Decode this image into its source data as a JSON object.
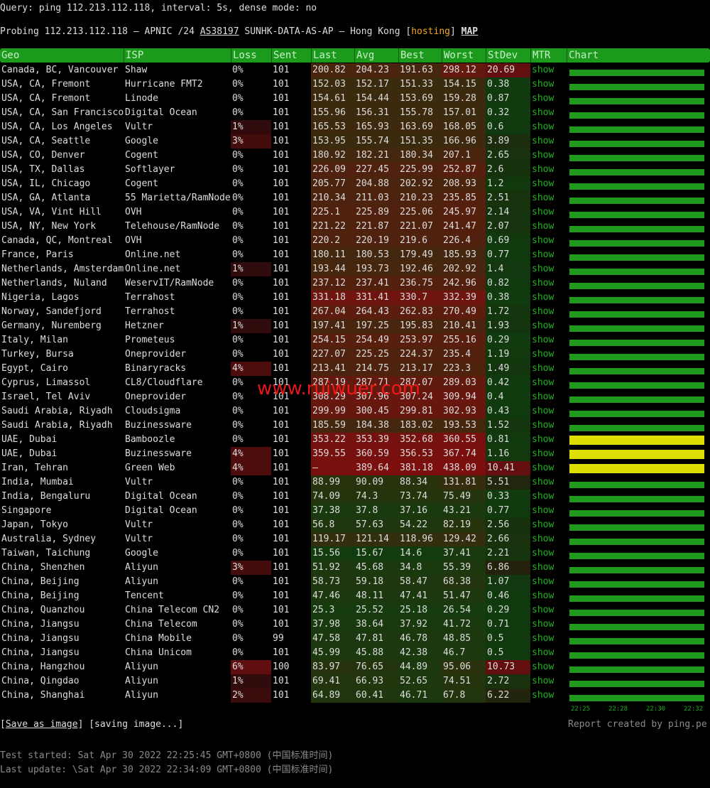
{
  "query": "Query: ping 112.213.112.118, interval: 5s, dense mode: no",
  "probing": {
    "prefix": "Probing 112.213.112.118 – APNIC /24 ",
    "asn": "AS38197",
    "middle": " SUNHK-DATA-AS-AP – Hong Kong [",
    "tag": "hosting",
    "close": "]",
    "map": "MAP"
  },
  "table": {
    "header": [
      "Geo",
      "ISP",
      "Loss",
      "Sent",
      "Last",
      "Avg",
      "Best",
      "Worst",
      "StDev",
      "MTR",
      "Chart"
    ],
    "rows": [
      {
        "cells": [
          "Canada, BC, Vancouver",
          "Shaw",
          "0%",
          "101",
          "200.82",
          "204.23",
          "191.63",
          "298.12",
          "20.69",
          "show"
        ],
        "chart_color": "#1f9a1f"
      },
      {
        "cells": [
          "USA, CA, Fremont",
          "Hurricane FMT2",
          "0%",
          "101",
          "152.03",
          "152.17",
          "151.33",
          "154.15",
          "0.38",
          "show"
        ],
        "chart_color": "#1f9a1f"
      },
      {
        "cells": [
          "USA, CA, Fremont",
          "Linode",
          "0%",
          "101",
          "154.61",
          "154.44",
          "153.69",
          "159.28",
          "0.87",
          "show"
        ],
        "chart_color": "#1f9a1f"
      },
      {
        "cells": [
          "USA, CA, San Francisco",
          "Digital Ocean",
          "0%",
          "101",
          "155.96",
          "156.31",
          "155.78",
          "157.01",
          "0.32",
          "show"
        ],
        "chart_color": "#1f9a1f"
      },
      {
        "cells": [
          "USA, CA, Los Angeles",
          "Vultr",
          "1%",
          "101",
          "165.53",
          "165.93",
          "163.69",
          "168.05",
          "0.6",
          "show"
        ],
        "chart_color": "#1f9a1f"
      },
      {
        "cells": [
          "USA, CA, Seattle",
          "Google",
          "3%",
          "101",
          "153.95",
          "155.74",
          "151.35",
          "166.96",
          "3.89",
          "show"
        ],
        "chart_color": "#1f9a1f"
      },
      {
        "cells": [
          "USA, CO, Denver",
          "Cogent",
          "0%",
          "101",
          "180.92",
          "182.21",
          "180.34",
          "207.1",
          "2.65",
          "show"
        ],
        "chart_color": "#1f9a1f"
      },
      {
        "cells": [
          "USA, TX, Dallas",
          "Softlayer",
          "0%",
          "101",
          "226.09",
          "227.45",
          "225.99",
          "252.87",
          "2.6",
          "show"
        ],
        "chart_color": "#1f9a1f"
      },
      {
        "cells": [
          "USA, IL, Chicago",
          "Cogent",
          "0%",
          "101",
          "205.77",
          "204.88",
          "202.92",
          "208.93",
          "1.2",
          "show"
        ],
        "chart_color": "#1f9a1f"
      },
      {
        "cells": [
          "USA, GA, Atlanta",
          "55 Marietta/RamNode",
          "0%",
          "101",
          "210.34",
          "211.03",
          "210.23",
          "235.85",
          "2.51",
          "show"
        ],
        "chart_color": "#1f9a1f"
      },
      {
        "cells": [
          "USA, VA, Vint Hill",
          "OVH",
          "0%",
          "101",
          "225.1",
          "225.89",
          "225.06",
          "245.97",
          "2.14",
          "show"
        ],
        "chart_color": "#1f9a1f"
      },
      {
        "cells": [
          "USA, NY, New York",
          "Telehouse/RamNode",
          "0%",
          "101",
          "221.22",
          "221.87",
          "221.07",
          "241.47",
          "2.07",
          "show"
        ],
        "chart_color": "#1f9a1f"
      },
      {
        "cells": [
          "Canada, QC, Montreal",
          "OVH",
          "0%",
          "101",
          "220.2",
          "220.19",
          "219.6",
          "226.4",
          "0.69",
          "show"
        ],
        "chart_color": "#1f9a1f"
      },
      {
        "cells": [
          "France, Paris",
          "Online.net",
          "0%",
          "101",
          "180.11",
          "180.53",
          "179.49",
          "185.93",
          "0.77",
          "show"
        ],
        "chart_color": "#1f9a1f"
      },
      {
        "cells": [
          "Netherlands, Amsterdam",
          "Online.net",
          "1%",
          "101",
          "193.44",
          "193.73",
          "192.46",
          "202.92",
          "1.4",
          "show"
        ],
        "chart_color": "#1f9a1f"
      },
      {
        "cells": [
          "Netherlands, Nuland",
          "WeservIT/RamNode",
          "0%",
          "101",
          "237.12",
          "237.41",
          "236.75",
          "242.96",
          "0.82",
          "show"
        ],
        "chart_color": "#1f9a1f"
      },
      {
        "cells": [
          "Nigeria, Lagos",
          "Terrahost",
          "0%",
          "101",
          "331.18",
          "331.41",
          "330.7",
          "332.39",
          "0.38",
          "show"
        ],
        "chart_color": "#1f9a1f"
      },
      {
        "cells": [
          "Norway, Sandefjord",
          "Terrahost",
          "0%",
          "101",
          "267.04",
          "264.43",
          "262.83",
          "270.49",
          "1.72",
          "show"
        ],
        "chart_color": "#1f9a1f"
      },
      {
        "cells": [
          "Germany, Nuremberg",
          "Hetzner",
          "1%",
          "101",
          "197.41",
          "197.25",
          "195.83",
          "210.41",
          "1.93",
          "show"
        ],
        "chart_color": "#1f9a1f"
      },
      {
        "cells": [
          "Italy, Milan",
          "Prometeus",
          "0%",
          "101",
          "254.15",
          "254.49",
          "253.97",
          "255.16",
          "0.29",
          "show"
        ],
        "chart_color": "#1f9a1f"
      },
      {
        "cells": [
          "Turkey, Bursa",
          "Oneprovider",
          "0%",
          "101",
          "227.07",
          "225.25",
          "224.37",
          "235.4",
          "1.19",
          "show"
        ],
        "chart_color": "#1f9a1f"
      },
      {
        "cells": [
          "Egypt, Cairo",
          "Binaryracks",
          "4%",
          "101",
          "213.41",
          "214.75",
          "213.17",
          "223.3",
          "1.49",
          "show"
        ],
        "chart_color": "#1f9a1f"
      },
      {
        "cells": [
          "Cyprus, Limassol",
          "CL8/Cloudflare",
          "0%",
          "101",
          "287.19",
          "287.71",
          "287.07",
          "289.03",
          "0.42",
          "show"
        ],
        "chart_color": "#1f9a1f"
      },
      {
        "cells": [
          "Israel, Tel Aviv",
          "Oneprovider",
          "0%",
          "101",
          "308.29",
          "307.96",
          "307.24",
          "309.94",
          "0.4",
          "show"
        ],
        "chart_color": "#1f9a1f"
      },
      {
        "cells": [
          "Saudi Arabia, Riyadh",
          "Cloudsigma",
          "0%",
          "101",
          "299.99",
          "300.45",
          "299.81",
          "302.93",
          "0.43",
          "show"
        ],
        "chart_color": "#1f9a1f"
      },
      {
        "cells": [
          "Saudi Arabia, Riyadh",
          "Buzinessware",
          "0%",
          "101",
          "185.59",
          "184.38",
          "183.02",
          "193.53",
          "1.52",
          "show"
        ],
        "chart_color": "#1f9a1f"
      },
      {
        "cells": [
          "UAE, Dubai",
          "Bamboozle",
          "0%",
          "101",
          "353.22",
          "353.39",
          "352.68",
          "360.55",
          "0.81",
          "show"
        ],
        "chart_color": "#dede00"
      },
      {
        "cells": [
          "UAE, Dubai",
          "Buzinessware",
          "4%",
          "101",
          "359.55",
          "360.59",
          "356.53",
          "367.74",
          "1.16",
          "show"
        ],
        "chart_color": "#dede00"
      },
      {
        "cells": [
          "Iran, Tehran",
          "Green Web",
          "4%",
          "101",
          "–",
          "389.64",
          "381.18",
          "438.09",
          "10.41",
          "show"
        ],
        "chart_color": "#dede00"
      },
      {
        "cells": [
          "India, Mumbai",
          "Vultr",
          "0%",
          "101",
          "88.99",
          "90.09",
          "88.34",
          "131.81",
          "5.51",
          "show"
        ],
        "chart_color": "#1f9a1f"
      },
      {
        "cells": [
          "India, Bengaluru",
          "Digital Ocean",
          "0%",
          "101",
          "74.09",
          "74.3",
          "73.74",
          "75.49",
          "0.33",
          "show"
        ],
        "chart_color": "#1f9a1f"
      },
      {
        "cells": [
          "Singapore",
          "Digital Ocean",
          "0%",
          "101",
          "37.38",
          "37.8",
          "37.16",
          "43.21",
          "0.77",
          "show"
        ],
        "chart_color": "#1f9a1f"
      },
      {
        "cells": [
          "Japan, Tokyo",
          "Vultr",
          "0%",
          "101",
          "56.8",
          "57.63",
          "54.22",
          "82.19",
          "2.56",
          "show"
        ],
        "chart_color": "#1f9a1f"
      },
      {
        "cells": [
          "Australia, Sydney",
          "Vultr",
          "0%",
          "101",
          "119.17",
          "121.14",
          "118.96",
          "129.42",
          "2.66",
          "show"
        ],
        "chart_color": "#1f9a1f"
      },
      {
        "cells": [
          "Taiwan, Taichung",
          "Google",
          "0%",
          "101",
          "15.56",
          "15.67",
          "14.6",
          "37.41",
          "2.21",
          "show"
        ],
        "chart_color": "#1f9a1f"
      },
      {
        "cells": [
          "China, Shenzhen",
          "Aliyun",
          "3%",
          "101",
          "51.92",
          "45.68",
          "34.8",
          "55.39",
          "6.86",
          "show"
        ],
        "chart_color": "#1f9a1f"
      },
      {
        "cells": [
          "China, Beijing",
          "Aliyun",
          "0%",
          "101",
          "58.73",
          "59.18",
          "58.47",
          "68.38",
          "1.07",
          "show"
        ],
        "chart_color": "#1f9a1f"
      },
      {
        "cells": [
          "China, Beijing",
          "Tencent",
          "0%",
          "101",
          "47.46",
          "48.11",
          "47.41",
          "51.47",
          "0.46",
          "show"
        ],
        "chart_color": "#1f9a1f"
      },
      {
        "cells": [
          "China, Quanzhou",
          "China Telecom CN2",
          "0%",
          "101",
          "25.3",
          "25.52",
          "25.18",
          "26.54",
          "0.29",
          "show"
        ],
        "chart_color": "#1f9a1f"
      },
      {
        "cells": [
          "China, Jiangsu",
          "China Telecom",
          "0%",
          "101",
          "37.98",
          "38.64",
          "37.92",
          "41.72",
          "0.71",
          "show"
        ],
        "chart_color": "#1f9a1f"
      },
      {
        "cells": [
          "China, Jiangsu",
          "China Mobile",
          "0%",
          "99",
          "47.58",
          "47.81",
          "46.78",
          "48.85",
          "0.5",
          "show"
        ],
        "chart_color": "#1f9a1f"
      },
      {
        "cells": [
          "China, Jiangsu",
          "China Unicom",
          "0%",
          "101",
          "45.99",
          "45.88",
          "42.38",
          "46.7",
          "0.5",
          "show"
        ],
        "chart_color": "#1f9a1f"
      },
      {
        "cells": [
          "China, Hangzhou",
          "Aliyun",
          "6%",
          "100",
          "83.97",
          "76.65",
          "44.89",
          "95.06",
          "10.73",
          "show"
        ],
        "chart_color": "#1f9a1f"
      },
      {
        "cells": [
          "China, Qingdao",
          "Aliyun",
          "1%",
          "101",
          "69.41",
          "66.93",
          "52.65",
          "74.51",
          "2.72",
          "show"
        ],
        "chart_color": "#1f9a1f"
      },
      {
        "cells": [
          "China, Shanghai",
          "Aliyun",
          "2%",
          "101",
          "64.89",
          "60.41",
          "46.71",
          "67.8",
          "6.22",
          "show"
        ],
        "chart_color": "#1f9a1f"
      }
    ],
    "chart_times": [
      "22:25",
      "22:28",
      "22:30",
      "22:32"
    ]
  },
  "watermark": "www.ruiwuer.com",
  "footer": {
    "save": "Save as image",
    "saving": "[saving image...]",
    "credit": "Report created by ping.pe",
    "started": "Test started: Sat Apr 30 2022 22:25:45 GMT+0800 (中国标准时间)",
    "updated": "Last update: \\Sat Apr 30 2022 22:34:09 GMT+0800 (中国标准时间)"
  }
}
